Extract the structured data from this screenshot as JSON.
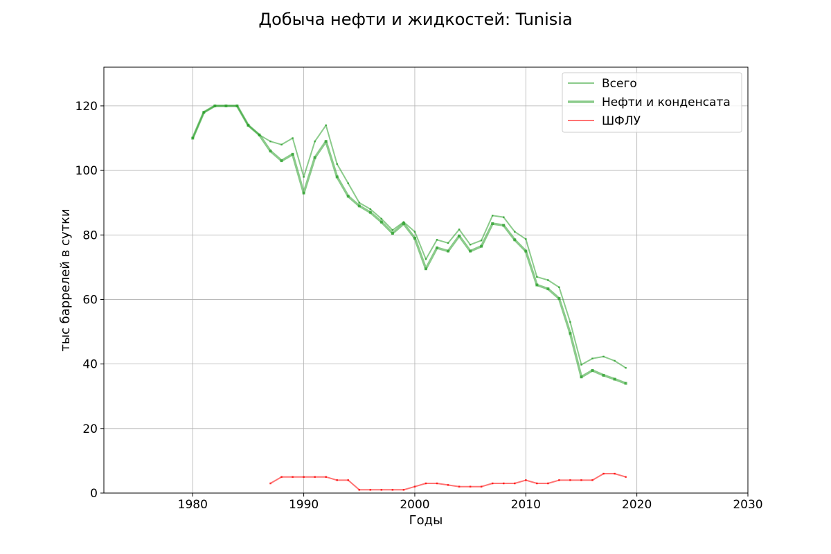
{
  "chart_data": {
    "type": "line",
    "title": "Добыча нефти и жидкостей: Tunisia",
    "xlabel": "Годы",
    "ylabel": "тыс баррелей в сутки",
    "xlim": [
      1972,
      2030
    ],
    "ylim": [
      0,
      132
    ],
    "xticks": [
      1980,
      1990,
      2000,
      2010,
      2020,
      2030
    ],
    "yticks": [
      0,
      20,
      40,
      60,
      80,
      100,
      120
    ],
    "grid": true,
    "legend_position": "top-right",
    "series": [
      {
        "name": "Всего",
        "color": "#2ca02c",
        "x": [
          1980,
          1981,
          1982,
          1983,
          1984,
          1985,
          1986,
          1987,
          1988,
          1989,
          1990,
          1991,
          1992,
          1993,
          1994,
          1995,
          1996,
          1997,
          1998,
          1999,
          2000,
          2001,
          2002,
          2003,
          2004,
          2005,
          2006,
          2007,
          2008,
          2009,
          2010,
          2011,
          2012,
          2013,
          2014,
          2015,
          2016,
          2017,
          2018,
          2019
        ],
        "values": [
          110,
          118,
          120,
          120,
          120,
          114,
          111,
          109,
          108,
          110,
          98,
          109,
          114,
          102,
          96,
          90,
          88,
          85,
          81.5,
          84,
          81,
          72.5,
          78.5,
          77.5,
          81.7,
          77,
          78.3,
          86,
          85.5,
          81,
          78.7,
          67,
          66,
          63.8,
          53,
          39.8,
          41.7,
          42.3,
          41,
          38.8
        ]
      },
      {
        "name": "Нефти и конденсата",
        "color": "#2ca02c",
        "x": [
          1980,
          1981,
          1982,
          1983,
          1984,
          1985,
          1986,
          1987,
          1988,
          1989,
          1990,
          1991,
          1992,
          1993,
          1994,
          1995,
          1996,
          1997,
          1998,
          1999,
          2000,
          2001,
          2002,
          2003,
          2004,
          2005,
          2006,
          2007,
          2008,
          2009,
          2010,
          2011,
          2012,
          2013,
          2014,
          2015,
          2016,
          2017,
          2018,
          2019
        ],
        "values": [
          110,
          118,
          120,
          120,
          120,
          114,
          111,
          106,
          103,
          105,
          93,
          104,
          109,
          98,
          92,
          89,
          87,
          84,
          80.5,
          83.5,
          79,
          69.5,
          76,
          75,
          79.7,
          75,
          76.5,
          83.5,
          83,
          78.5,
          75,
          64.5,
          63.3,
          60.3,
          49.5,
          36,
          38,
          36.5,
          35.3,
          34
        ]
      },
      {
        "name": "ШФЛУ",
        "color": "#ff0000",
        "x": [
          1987,
          1988,
          1989,
          1990,
          1991,
          1992,
          1993,
          1994,
          1995,
          1996,
          1997,
          1998,
          1999,
          2000,
          2001,
          2002,
          2003,
          2004,
          2005,
          2006,
          2007,
          2008,
          2009,
          2010,
          2011,
          2012,
          2013,
          2014,
          2015,
          2016,
          2017,
          2018,
          2019
        ],
        "values": [
          3,
          5,
          5,
          5,
          5,
          5,
          4,
          4,
          1,
          1,
          1,
          1,
          1,
          2,
          3,
          3,
          2.5,
          2,
          2,
          2,
          3,
          3,
          3,
          4,
          3,
          3,
          4,
          4,
          4,
          4,
          6,
          6,
          5
        ]
      }
    ]
  }
}
